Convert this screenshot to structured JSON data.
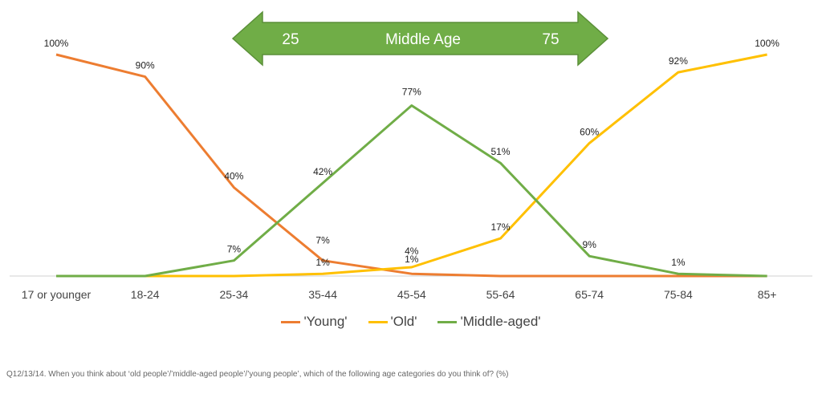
{
  "chart_data": {
    "type": "line",
    "categories": [
      "17 or younger",
      "18-24",
      "25-34",
      "35-44",
      "45-54",
      "55-64",
      "65-74",
      "75-84",
      "85+"
    ],
    "ylim": [
      0,
      100
    ],
    "grid": false,
    "legend_position": "bottom",
    "series": [
      {
        "name": "'Young'",
        "color": "#ED7D31",
        "values": [
          100,
          90,
          40,
          7,
          1,
          0,
          0,
          0,
          0
        ],
        "labels": [
          "100%",
          "90%",
          "40%",
          "7%",
          "1%",
          "",
          "",
          "",
          ""
        ]
      },
      {
        "name": "'Old'",
        "color": "#FFC000",
        "values": [
          0,
          0,
          0,
          1,
          4,
          17,
          60,
          92,
          100
        ],
        "labels": [
          "",
          "",
          "",
          "1%",
          "4%",
          "17%",
          "60%",
          "92%",
          "100%"
        ]
      },
      {
        "name": "'Middle-aged'",
        "color": "#70AD47",
        "values": [
          0,
          0,
          7,
          42,
          77,
          51,
          9,
          1,
          0
        ],
        "labels": [
          "",
          "",
          "7%",
          "42%",
          "77%",
          "51%",
          "9%",
          "1%",
          ""
        ]
      }
    ],
    "annotation": {
      "left": "25",
      "center": "Middle Age",
      "right": "75",
      "color": "#70AD47"
    }
  },
  "footnote": "Q12/13/14. When you think about ‘old people’/’middle-aged people’/’young people’, which of the following age categories do you think of? (%)"
}
